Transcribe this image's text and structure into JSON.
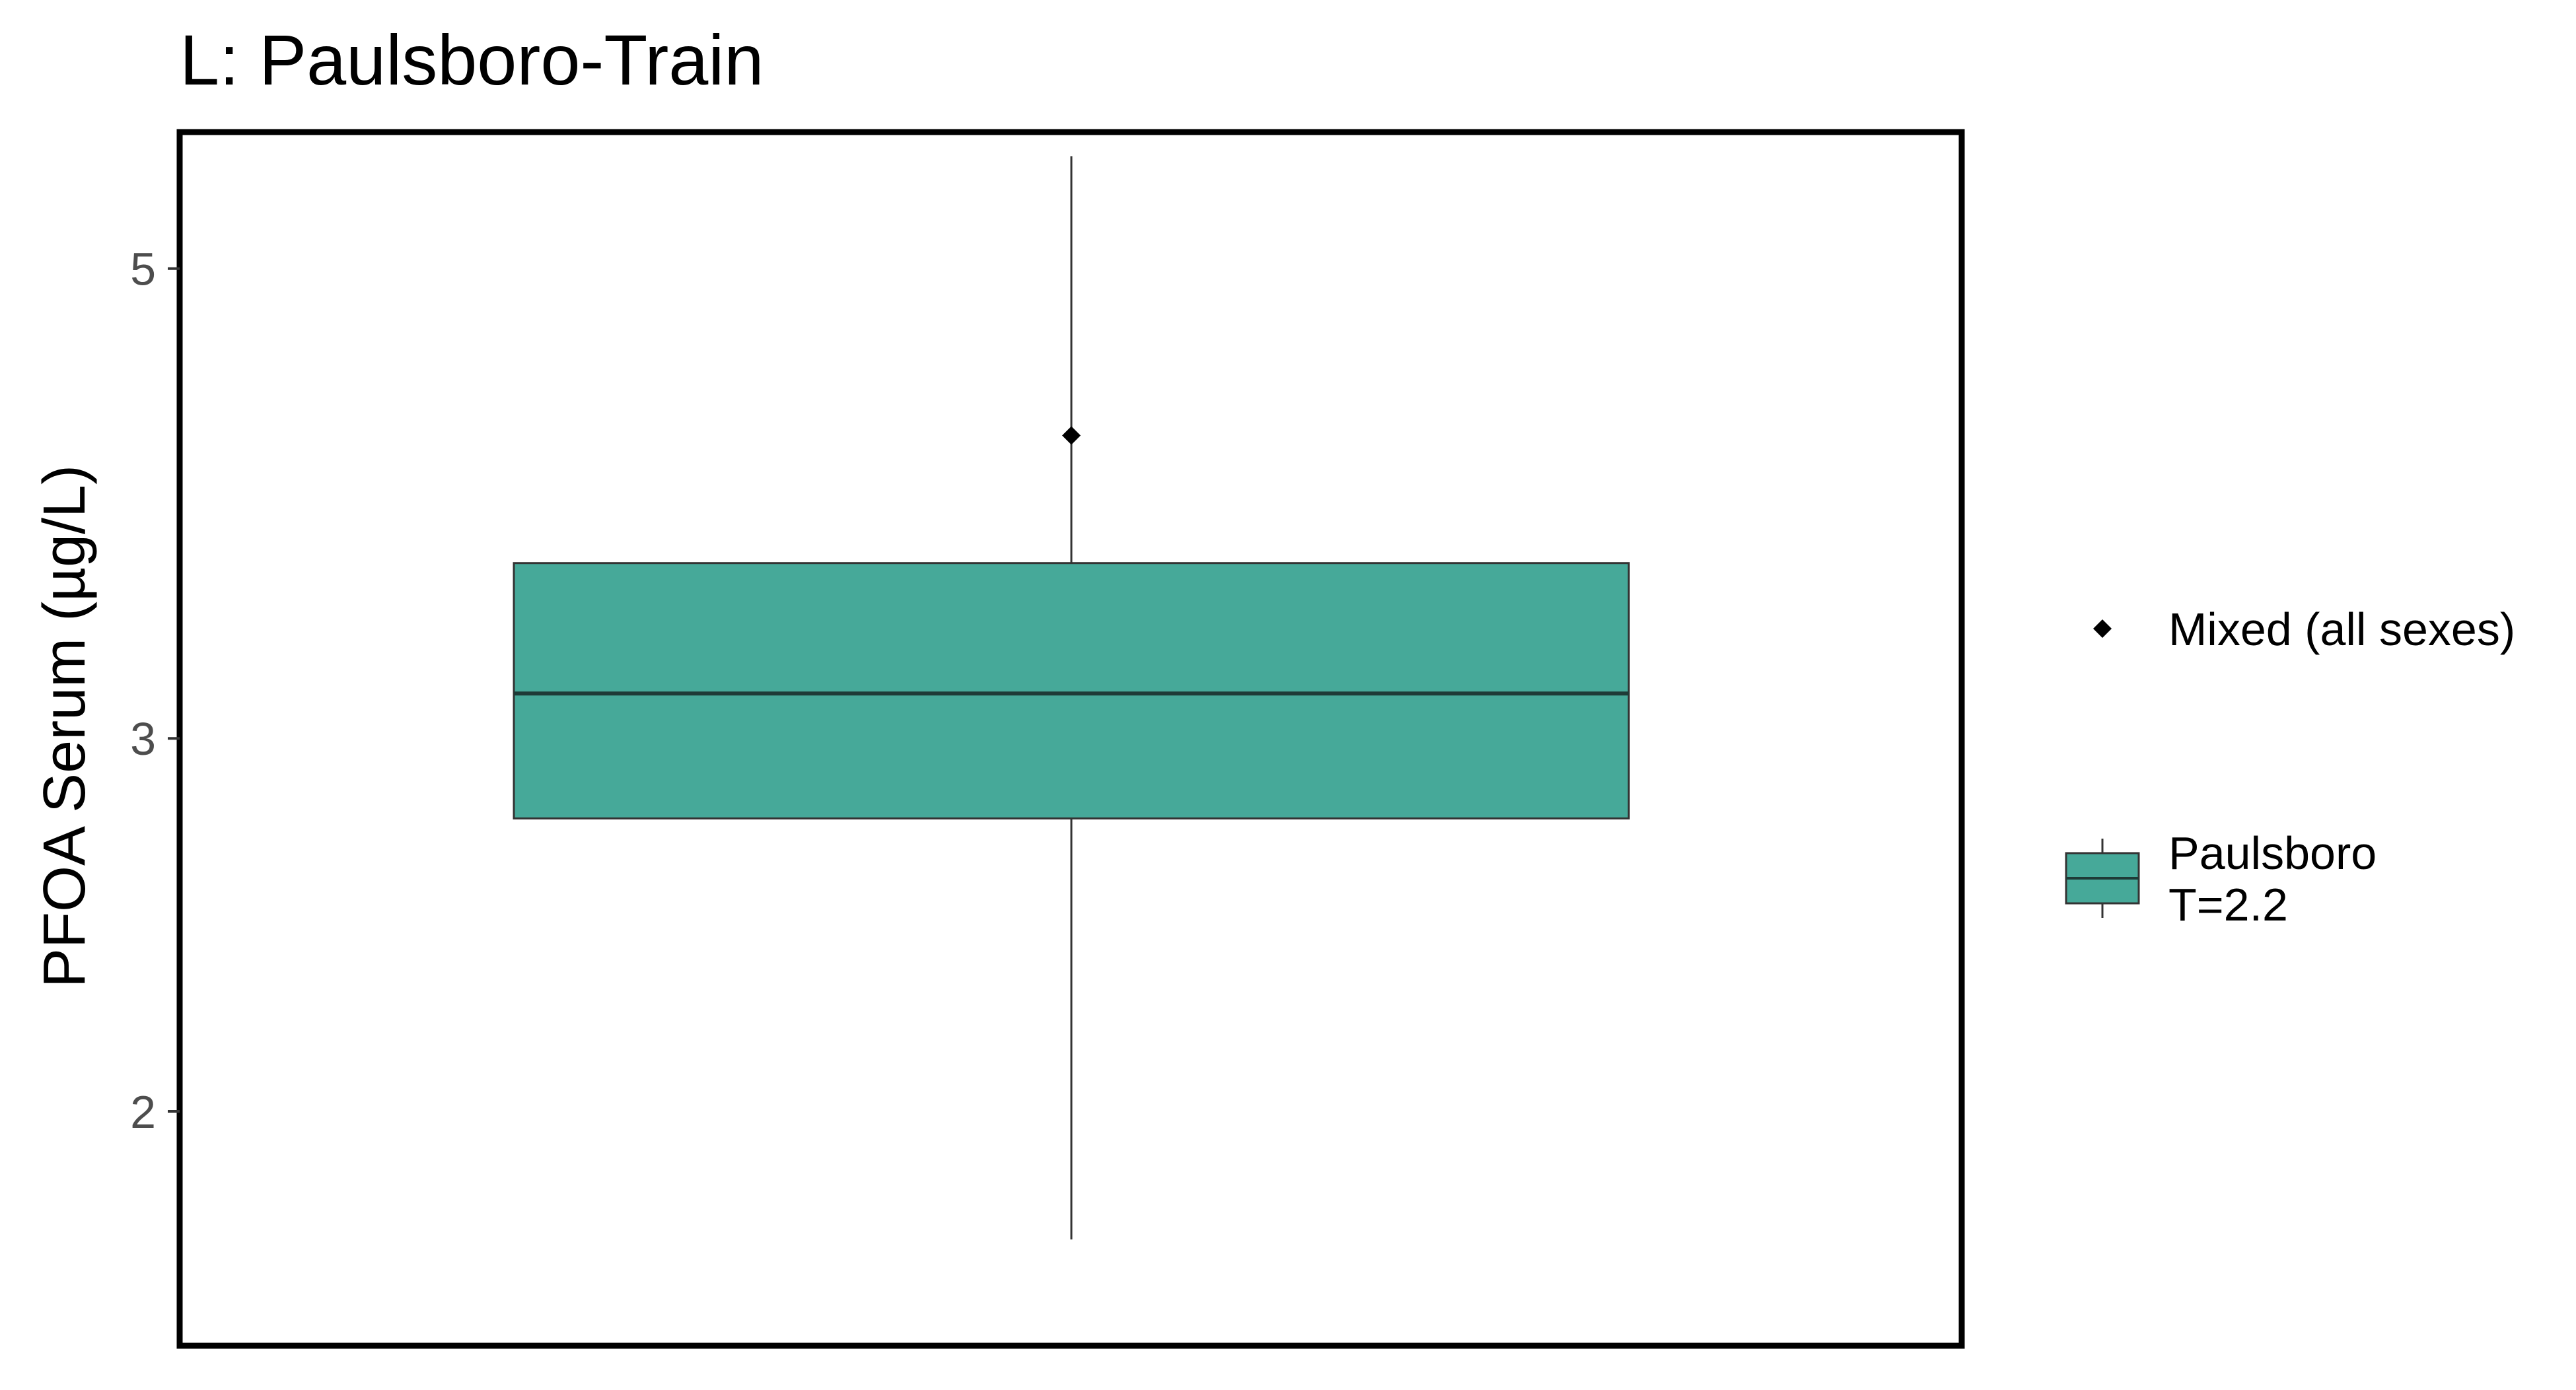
{
  "chart_data": {
    "type": "box",
    "title": "L: Paulsboro-Train",
    "xlabel": "",
    "ylabel": "PFOA Serum (µg/L)",
    "y_scale": "log",
    "ylim": [
      1.55,
      5.8
    ],
    "y_ticks": [
      2,
      3,
      5
    ],
    "grid": false,
    "legend_position": "right",
    "boxes": [
      {
        "name": "Paulsboro\nT=2.2",
        "whisker_low": 1.74,
        "q1": 2.75,
        "median": 3.15,
        "q3": 3.63,
        "whisker_high": 5.65,
        "color": "#46A999"
      }
    ],
    "points": [
      {
        "name": "Mixed (all sexes)",
        "y": 4.17,
        "shape": "diamond",
        "color": "#000000"
      }
    ]
  }
}
